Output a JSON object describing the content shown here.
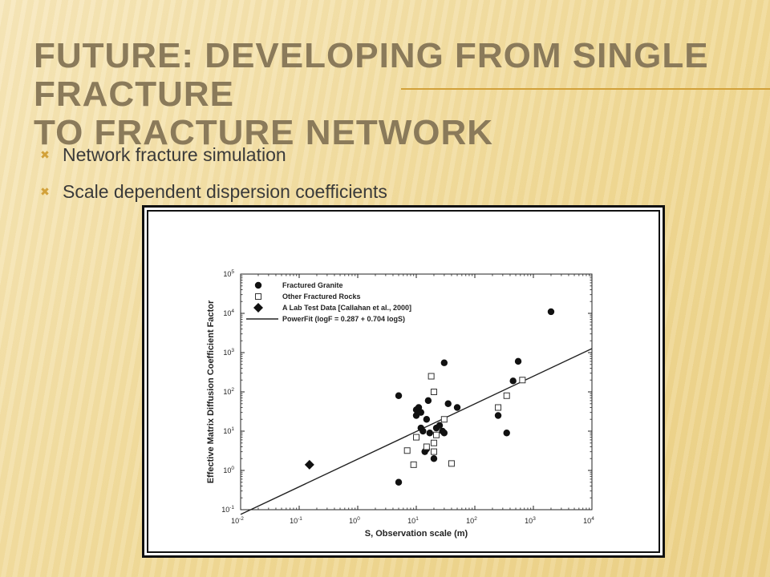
{
  "slide": {
    "title_line1": "Future: Developing from single fracture",
    "title_line2": "to fracture network",
    "bullets": [
      {
        "text": "Network fracture simulation",
        "icon": "x-bullet-icon"
      },
      {
        "text": "Scale dependent dispersion coefficients",
        "icon": "x-bullet-icon"
      }
    ],
    "accent_color": "#d2a13a"
  },
  "chart_data": {
    "type": "scatter",
    "xlabel": "S, Observation scale (m)",
    "ylabel": "Effective Matrix Diffusion Coefficient Factor",
    "log_x": true,
    "log_y": true,
    "xlim": [
      0.01,
      10000
    ],
    "ylim": [
      0.1,
      100000
    ],
    "x_ticks": [
      {
        "base": "10",
        "exp": "-2"
      },
      {
        "base": "10",
        "exp": "-1"
      },
      {
        "base": "10",
        "exp": "0"
      },
      {
        "base": "10",
        "exp": "1"
      },
      {
        "base": "10",
        "exp": "2"
      },
      {
        "base": "10",
        "exp": "3"
      },
      {
        "base": "10",
        "exp": "4"
      }
    ],
    "y_ticks": [
      {
        "base": "10",
        "exp": "-1"
      },
      {
        "base": "10",
        "exp": "0"
      },
      {
        "base": "10",
        "exp": "1"
      },
      {
        "base": "10",
        "exp": "2"
      },
      {
        "base": "10",
        "exp": "3"
      },
      {
        "base": "10",
        "exp": "4"
      },
      {
        "base": "10",
        "exp": "5"
      }
    ],
    "legend": {
      "placement": "top-left",
      "entries": [
        {
          "label": "Fractured Granite",
          "marker": "filled-circle"
        },
        {
          "label": "Other Fractured Rocks",
          "marker": "open-square"
        },
        {
          "label": "A Lab Test Data [Callahan et al., 2000]",
          "marker": "filled-diamond"
        },
        {
          "label": "PowerFit (logF  = 0.287 + 0.704 logS)",
          "marker": "line"
        }
      ]
    },
    "series": [
      {
        "name": "Fractured Granite",
        "points": [
          [
            5,
            0.5
          ],
          [
            5,
            80
          ],
          [
            10,
            25
          ],
          [
            10,
            35
          ],
          [
            11,
            40
          ],
          [
            12,
            12
          ],
          [
            12,
            30
          ],
          [
            13,
            10
          ],
          [
            14,
            3
          ],
          [
            15,
            3.5
          ],
          [
            15,
            20
          ],
          [
            16,
            60
          ],
          [
            17,
            9
          ],
          [
            20,
            2
          ],
          [
            22,
            12
          ],
          [
            25,
            14
          ],
          [
            28,
            10
          ],
          [
            30,
            9
          ],
          [
            30,
            550
          ],
          [
            35,
            50
          ],
          [
            50,
            40
          ],
          [
            250,
            25
          ],
          [
            350,
            9
          ],
          [
            450,
            190
          ],
          [
            550,
            600
          ],
          [
            2000,
            11000
          ]
        ]
      },
      {
        "name": "Other Fractured Rocks",
        "points": [
          [
            7,
            3.2
          ],
          [
            9,
            1.4
          ],
          [
            10,
            7
          ],
          [
            15,
            4
          ],
          [
            18,
            250
          ],
          [
            20,
            5
          ],
          [
            20,
            3
          ],
          [
            20,
            100
          ],
          [
            22,
            8
          ],
          [
            30,
            20
          ],
          [
            40,
            1.5
          ],
          [
            250,
            40
          ],
          [
            350,
            80
          ],
          [
            650,
            200
          ]
        ]
      },
      {
        "name": "A Lab Test Data [Callahan et al., 2000]",
        "points": [
          [
            0.15,
            1.4
          ]
        ]
      }
    ],
    "fit": {
      "name": "PowerFit (logF  = 0.287 + 0.704 logS)",
      "intercept": 0.287,
      "slope": 0.704
    }
  }
}
